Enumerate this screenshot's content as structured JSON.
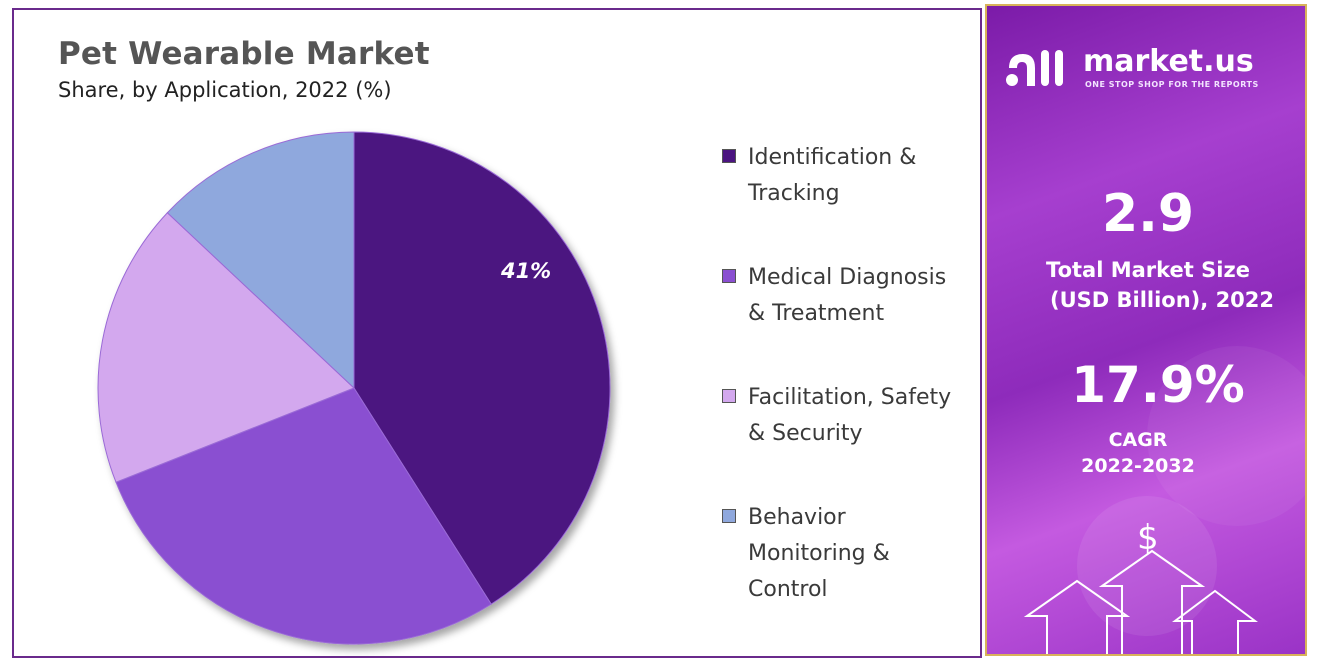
{
  "chart_data": {
    "type": "pie",
    "title": "Pet Wearable Market",
    "subtitle": "Share, by Application, 2022 (%)",
    "categories": [
      "Identification & Tracking",
      "Medical Diagnosis & Treatment",
      "Facilitation, Safety & Security",
      "Behavior Monitoring & Control"
    ],
    "legend_lines": [
      [
        "Identification &",
        "Tracking"
      ],
      [
        "Medical Diagnosis",
        "& Treatment"
      ],
      [
        "Facilitation, Safety",
        "& Security"
      ],
      [
        "Behavior",
        "Monitoring &",
        "Control"
      ]
    ],
    "values": [
      41,
      28,
      18,
      13
    ],
    "data_labels": [
      "41%",
      "",
      "",
      ""
    ],
    "colors": [
      "#4b1480",
      "#8a4fd1",
      "#d3a8ee",
      "#8fa8dd"
    ],
    "legend_position": "right"
  },
  "brand": {
    "name": "market.us",
    "tagline": "ONE STOP SHOP FOR THE REPORTS"
  },
  "stats": {
    "market_size_value": "2.9",
    "market_size_label_1": "Total Market Size",
    "market_size_label_2": "(USD Billion), 2022",
    "cagr_value": "17.9%",
    "cagr_label_1": "CAGR",
    "cagr_label_2": "2022-2032"
  },
  "icons": {
    "currency_symbol": "$"
  }
}
